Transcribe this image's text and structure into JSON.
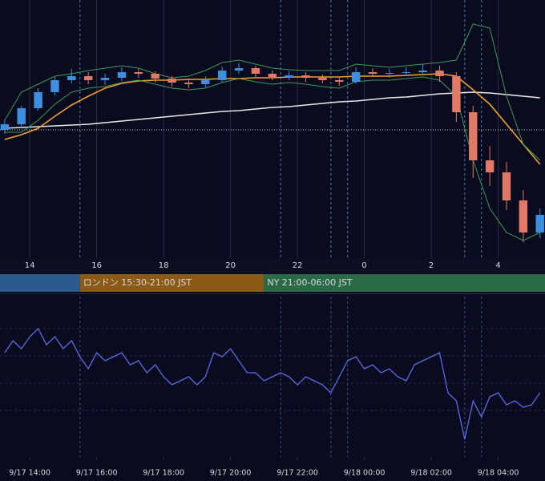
{
  "chart_data": [
    {
      "type": "candlestick",
      "x": [
        13.25,
        13.75,
        14.25,
        14.75,
        15.25,
        15.75,
        16.25,
        16.75,
        17.25,
        17.75,
        18.25,
        18.75,
        19.25,
        19.75,
        20.25,
        20.75,
        21.25,
        21.75,
        22.25,
        22.75,
        23.25,
        23.75,
        24.25,
        24.75,
        25.25,
        25.75,
        26.25,
        26.75,
        27.25,
        27.75,
        28.25,
        28.75,
        29.25
      ],
      "open": [
        160,
        167,
        187,
        207,
        222,
        227,
        222,
        225,
        232,
        230,
        224,
        219,
        217,
        222,
        234,
        237,
        230,
        226,
        228,
        225,
        222,
        220,
        232,
        230,
        231,
        232,
        234,
        227,
        182,
        122,
        107,
        72,
        32
      ],
      "high": [
        172,
        190,
        212,
        226,
        236,
        232,
        230,
        238,
        236,
        233,
        227,
        224,
        227,
        239,
        243,
        240,
        234,
        233,
        232,
        229,
        226,
        238,
        237,
        236,
        238,
        242,
        240,
        232,
        190,
        140,
        120,
        85,
        62
      ],
      "low": [
        155,
        163,
        184,
        203,
        218,
        217,
        216,
        221,
        225,
        219,
        214,
        212,
        213,
        219,
        230,
        226,
        222,
        222,
        220,
        218,
        215,
        218,
        226,
        225,
        227,
        229,
        220,
        170,
        100,
        90,
        60,
        20,
        25
      ],
      "close": [
        167,
        187,
        207,
        222,
        227,
        222,
        225,
        232,
        230,
        224,
        219,
        217,
        222,
        234,
        237,
        230,
        226,
        228,
        225,
        222,
        220,
        232,
        230,
        231,
        232,
        234,
        227,
        182,
        122,
        107,
        72,
        32,
        54
      ],
      "up_color": "#3f8fe0",
      "down_color": "#e07a66",
      "lines": [
        {
          "color": "#e8e8e8",
          "values": [
            162,
            163,
            164,
            165,
            166,
            167,
            169,
            171,
            173,
            175,
            177,
            179,
            181,
            183,
            184,
            186,
            188,
            189,
            191,
            193,
            195,
            196,
            198,
            200,
            201,
            203,
            205,
            206,
            207,
            206,
            204,
            202,
            200
          ]
        },
        {
          "color": "#f0a030",
          "values": [
            148,
            154,
            162,
            177,
            191,
            202,
            212,
            218,
            221,
            222,
            222,
            223,
            223,
            224,
            224,
            225,
            225,
            226,
            226,
            226,
            226,
            227,
            227,
            227,
            228,
            229,
            230,
            227,
            210,
            192,
            167,
            142,
            117
          ]
        },
        {
          "color": "#3a9a5a",
          "values": [
            172,
            207,
            217,
            227,
            230,
            234,
            237,
            240,
            237,
            230,
            225,
            227,
            234,
            244,
            247,
            242,
            237,
            235,
            234,
            234,
            234,
            242,
            240,
            238,
            240,
            242,
            244,
            247,
            292,
            287,
            202,
            142,
            122
          ]
        },
        {
          "color": "#3a9a5a",
          "values": [
            157,
            157,
            172,
            192,
            207,
            212,
            214,
            219,
            222,
            217,
            212,
            210,
            212,
            219,
            224,
            220,
            217,
            219,
            217,
            214,
            212,
            220,
            222,
            222,
            224,
            226,
            222,
            202,
            122,
            62,
            32,
            22,
            32
          ]
        }
      ],
      "hline": 160,
      "session_lines": [
        15.5,
        21.5,
        23,
        23.5,
        27,
        27.5
      ],
      "xlim": [
        13.11,
        29.4
      ],
      "ylim": [
        0,
        322
      ],
      "xticks": [
        14,
        16,
        18,
        20,
        22,
        {
          "value": 24,
          "label": "0"
        },
        {
          "value": 26,
          "label": "2"
        },
        {
          "value": 28,
          "label": "4"
        }
      ],
      "sessions": [
        {
          "start": 13.11,
          "end": 15.5,
          "color": "#2b5a8c"
        },
        {
          "label": "ロンドン 15:30-21:00 JST",
          "start": 15.5,
          "end": 21,
          "color": "#8a5a16"
        },
        {
          "label": "NY 21:00-06:00 JST",
          "start": 21,
          "end": 30,
          "color": "#2a6a46"
        }
      ]
    },
    {
      "type": "line",
      "color": "#5a6ae8",
      "x": [
        13.25,
        13.5,
        13.75,
        14,
        14.25,
        14.5,
        14.75,
        15,
        15.25,
        15.5,
        15.75,
        16,
        16.25,
        16.5,
        16.75,
        17,
        17.25,
        17.5,
        17.75,
        18,
        18.25,
        18.5,
        18.75,
        19,
        19.25,
        19.5,
        19.75,
        20,
        20.25,
        20.5,
        20.75,
        21,
        21.25,
        21.5,
        21.75,
        22,
        22.25,
        22.5,
        22.75,
        23,
        23.25,
        23.5,
        23.75,
        24,
        24.25,
        24.5,
        24.75,
        25,
        25.25,
        25.5,
        25.75,
        26,
        26.25,
        26.5,
        26.75,
        27,
        27.25,
        27.5,
        27.75,
        28,
        28.25,
        28.5,
        28.75,
        29,
        29.25
      ],
      "values": [
        65,
        72.5,
        67.5,
        75,
        80,
        70,
        75,
        67.5,
        72.5,
        62.5,
        55,
        65,
        60,
        62.5,
        65,
        57.5,
        60,
        52.5,
        57.5,
        50,
        45,
        47.5,
        50,
        45,
        50,
        65,
        62.5,
        67.5,
        60,
        52.5,
        52.5,
        47.5,
        50,
        52.5,
        50,
        45,
        50,
        47.5,
        45,
        40,
        50,
        60,
        62.5,
        55,
        57.5,
        52.5,
        55,
        50,
        47.5,
        57.5,
        60,
        62.5,
        65,
        40,
        35,
        11,
        35,
        25,
        37.5,
        40,
        32.5,
        35,
        31,
        32.5,
        40
      ],
      "xlim": [
        13.11,
        29.4
      ],
      "ylim": [
        0,
        100
      ],
      "ygrid": [
        80,
        63,
        46,
        29
      ],
      "xticks": [
        {
          "value": 14,
          "label": "9/17 14:00"
        },
        {
          "value": 16,
          "label": "9/17 16:00"
        },
        {
          "value": 18,
          "label": "9/17 18:00"
        },
        {
          "value": 20,
          "label": "9/17 20:00"
        },
        {
          "value": 22,
          "label": "9/17 22:00"
        },
        {
          "value": 24,
          "label": "9/18 00:00"
        },
        {
          "value": 26,
          "label": "9/18 02:00"
        },
        {
          "value": 28,
          "label": "9/18 04:00"
        }
      ]
    }
  ]
}
